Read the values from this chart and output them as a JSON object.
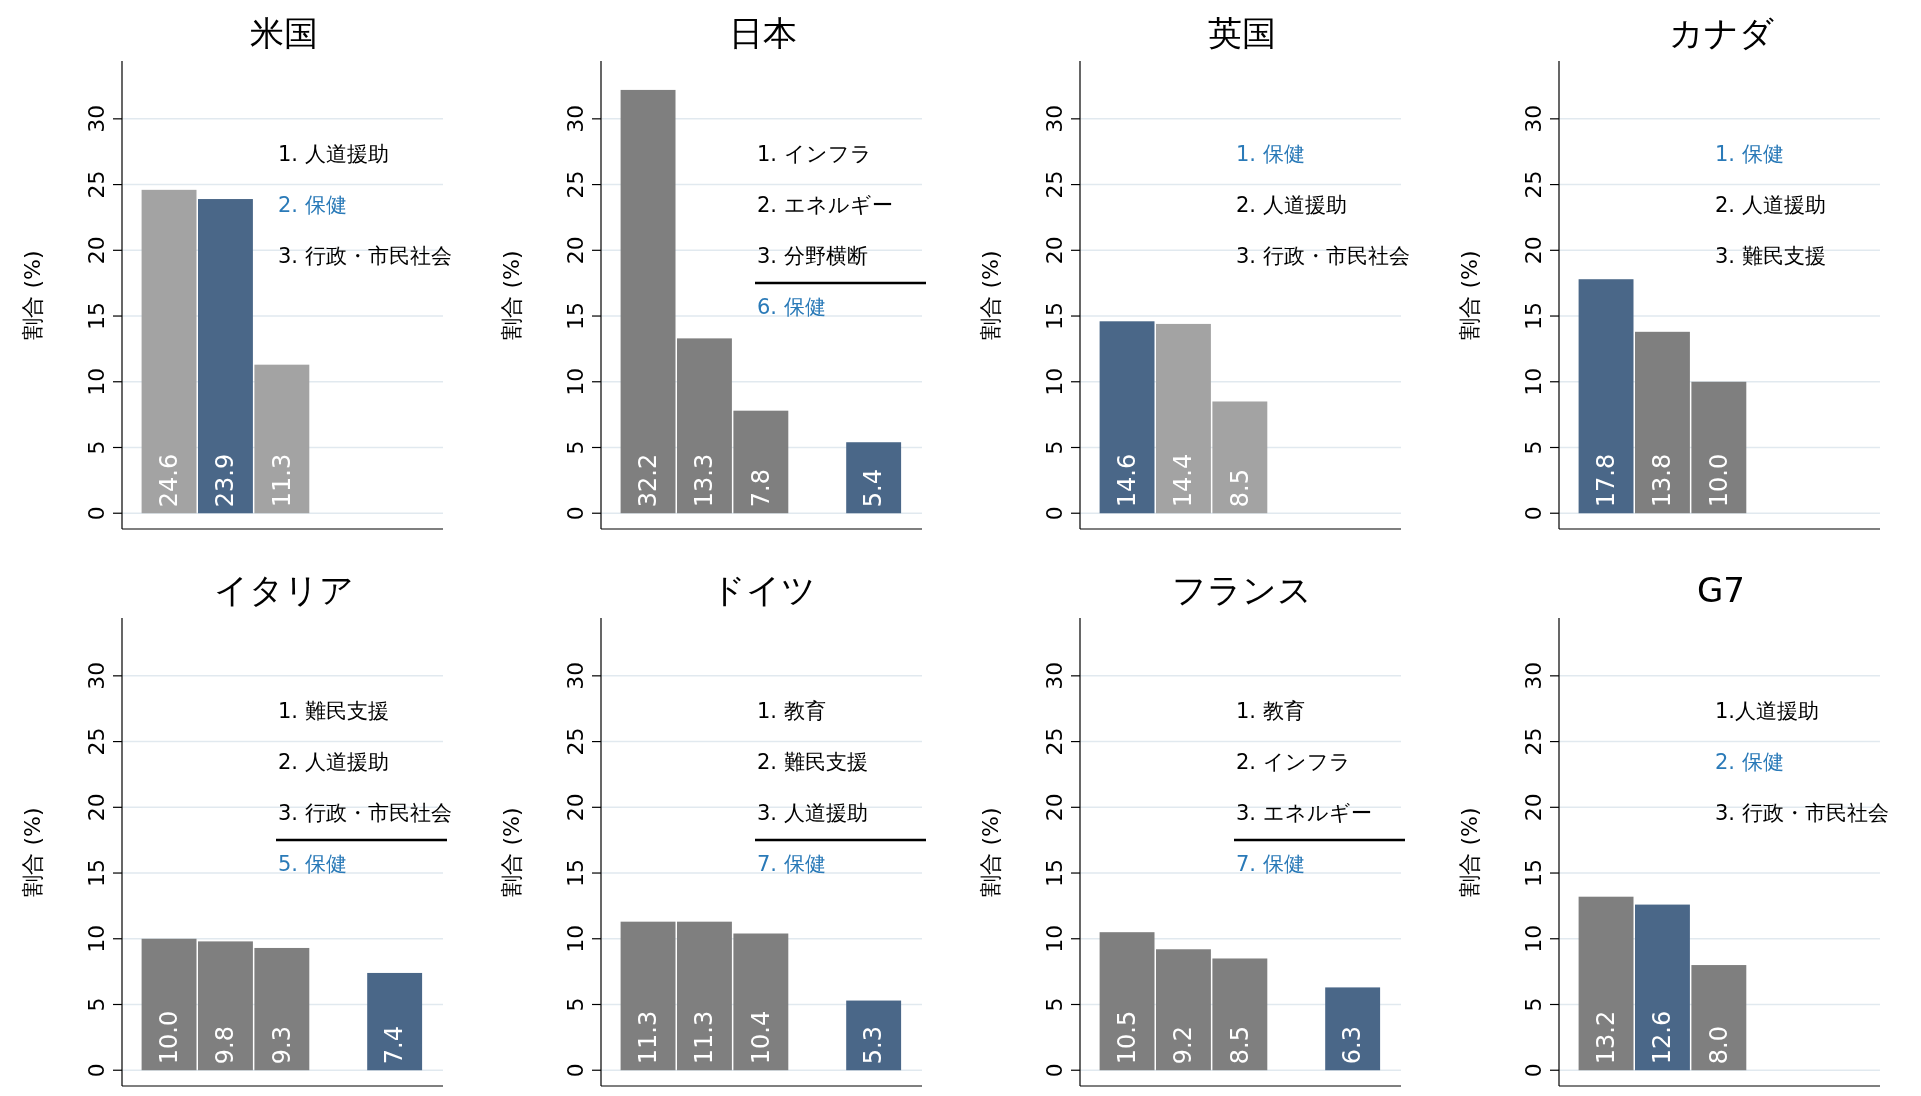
{
  "chart_data": [
    {
      "type": "bar",
      "title": "米国",
      "ylabel": "割合 (%)",
      "categories": [
        null,
        null,
        null,
        null,
        null
      ],
      "values": [
        24.6,
        23.9,
        11.3,
        null,
        null
      ],
      "value_labels": [
        "24.6",
        "23.9",
        "11.3",
        null,
        null
      ],
      "colors": [
        "#a3a3a3",
        "#4a6788",
        "#a3a3a3",
        null,
        null
      ],
      "ylim": [
        -1.2,
        34.4
      ],
      "yticks": [
        0,
        5,
        10,
        15,
        20,
        25,
        30
      ],
      "grid": "y",
      "annotations": [
        "1. 人道援助",
        "2. 保健",
        "3. 行政・市民社会"
      ]
    },
    {
      "type": "bar",
      "title": "日本",
      "ylabel": "割合 (%)",
      "categories": [
        null,
        null,
        null,
        null,
        null
      ],
      "values": [
        32.2,
        13.3,
        7.8,
        null,
        5.4
      ],
      "value_labels": [
        "32.2",
        "13.3",
        "7.8",
        null,
        "5.4"
      ],
      "colors": [
        "#7f7f7f",
        "#7f7f7f",
        "#7f7f7f",
        null,
        "#4a6788"
      ],
      "ylim": [
        -1.2,
        34.4
      ],
      "yticks": [
        0,
        5,
        10,
        15,
        20,
        25,
        30
      ],
      "grid": "y",
      "annotations": [
        "1. インフラ",
        "2. エネルギー",
        "3. 分野横断",
        "6. 保健"
      ]
    },
    {
      "type": "bar",
      "title": "英国",
      "ylabel": "割合 (%)",
      "categories": [
        null,
        null,
        null,
        null,
        null
      ],
      "values": [
        14.6,
        14.4,
        8.5,
        null,
        null
      ],
      "value_labels": [
        "14.6",
        "14.4",
        "8.5",
        null,
        null
      ],
      "colors": [
        "#4a6788",
        "#a3a3a3",
        "#a3a3a3",
        null,
        null
      ],
      "ylim": [
        -1.2,
        34.4
      ],
      "yticks": [
        0,
        5,
        10,
        15,
        20,
        25,
        30
      ],
      "grid": "y",
      "annotations": [
        "1. 保健",
        "2. 人道援助",
        "3. 行政・市民社会"
      ]
    },
    {
      "type": "bar",
      "title": "カナダ",
      "ylabel": "割合 (%)",
      "categories": [
        null,
        null,
        null,
        null,
        null
      ],
      "values": [
        17.8,
        13.8,
        10.0,
        null,
        null
      ],
      "value_labels": [
        "17.8",
        "13.8",
        "10.0",
        null,
        null
      ],
      "colors": [
        "#4a6788",
        "#7f7f7f",
        "#7f7f7f",
        null,
        null
      ],
      "ylim": [
        -1.2,
        34.4
      ],
      "yticks": [
        0,
        5,
        10,
        15,
        20,
        25,
        30
      ],
      "grid": "y",
      "annotations": [
        "1. 保健",
        "2. 人道援助",
        "3. 難民支援"
      ]
    },
    {
      "type": "bar",
      "title": "イタリア",
      "ylabel": "割合 (%)",
      "categories": [
        null,
        null,
        null,
        null,
        null
      ],
      "values": [
        10.0,
        9.8,
        9.3,
        null,
        7.4
      ],
      "value_labels": [
        "10.0",
        "9.8",
        "9.3",
        null,
        "7.4"
      ],
      "colors": [
        "#7f7f7f",
        "#7f7f7f",
        "#7f7f7f",
        null,
        "#4a6788"
      ],
      "ylim": [
        -1.2,
        34.4
      ],
      "yticks": [
        0,
        5,
        10,
        15,
        20,
        25,
        30
      ],
      "grid": "y",
      "annotations": [
        "1. 難民支援",
        "2. 人道援助",
        "3. 行政・市民社会",
        "5. 保健"
      ]
    },
    {
      "type": "bar",
      "title": "ドイツ",
      "ylabel": "割合 (%)",
      "categories": [
        null,
        null,
        null,
        null,
        null
      ],
      "values": [
        11.3,
        11.3,
        10.4,
        null,
        5.3
      ],
      "value_labels": [
        "11.3",
        "11.3",
        "10.4",
        null,
        "5.3"
      ],
      "colors": [
        "#7f7f7f",
        "#7f7f7f",
        "#7f7f7f",
        null,
        "#4a6788"
      ],
      "ylim": [
        -1.2,
        34.4
      ],
      "yticks": [
        0,
        5,
        10,
        15,
        20,
        25,
        30
      ],
      "grid": "y",
      "annotations": [
        "1. 教育",
        "2. 難民支援",
        "3. 人道援助",
        "7. 保健"
      ]
    },
    {
      "type": "bar",
      "title": "フランス",
      "ylabel": "割合 (%)",
      "categories": [
        null,
        null,
        null,
        null,
        null
      ],
      "values": [
        10.5,
        9.2,
        8.5,
        null,
        6.3
      ],
      "value_labels": [
        "10.5",
        "9.2",
        "8.5",
        null,
        "6.3"
      ],
      "colors": [
        "#7f7f7f",
        "#7f7f7f",
        "#7f7f7f",
        null,
        "#4a6788"
      ],
      "ylim": [
        -1.2,
        34.4
      ],
      "yticks": [
        0,
        5,
        10,
        15,
        20,
        25,
        30
      ],
      "grid": "y",
      "annotations": [
        "1. 教育",
        "2. インフラ",
        "3. エネルギー",
        "7. 保健"
      ]
    },
    {
      "type": "bar",
      "title": "G7",
      "ylabel": "割合 (%)",
      "categories": [
        null,
        null,
        null,
        null,
        null
      ],
      "values": [
        13.2,
        12.6,
        8.0,
        null,
        null
      ],
      "value_labels": [
        "13.2",
        "12.6",
        "8.0",
        null,
        null
      ],
      "colors": [
        "#7f7f7f",
        "#4a6788",
        "#7f7f7f",
        null,
        null
      ],
      "ylim": [
        -1.2,
        34.4
      ],
      "yticks": [
        0,
        5,
        10,
        15,
        20,
        25,
        30
      ],
      "grid": "y",
      "annotations": [
        "1.人道援助",
        "2. 保健",
        "3. 行政・市民社会"
      ]
    }
  ]
}
